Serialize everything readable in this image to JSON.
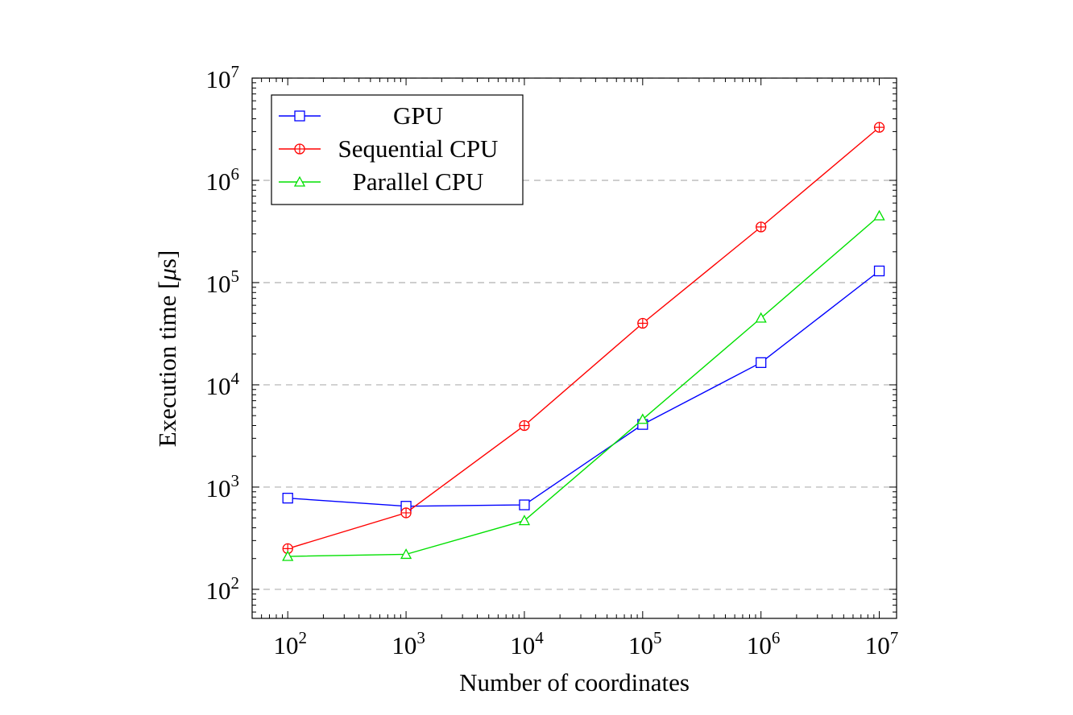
{
  "chart_data": {
    "type": "line",
    "title": "",
    "xlabel": "Number of coordinates",
    "ylabel_prefix": "Execution time [",
    "ylabel_mu": "μ",
    "ylabel_suffix": "s]",
    "xscale": "log",
    "yscale": "log",
    "xlim": [
      50,
      14000000
    ],
    "ylim": [
      52,
      10000000
    ],
    "x_ticks": [
      {
        "base": "10",
        "exp": "2",
        "value": 100
      },
      {
        "base": "10",
        "exp": "3",
        "value": 1000
      },
      {
        "base": "10",
        "exp": "4",
        "value": 10000
      },
      {
        "base": "10",
        "exp": "5",
        "value": 100000
      },
      {
        "base": "10",
        "exp": "6",
        "value": 1000000
      },
      {
        "base": "10",
        "exp": "7",
        "value": 10000000
      }
    ],
    "y_ticks": [
      {
        "base": "10",
        "exp": "2",
        "value": 100
      },
      {
        "base": "10",
        "exp": "3",
        "value": 1000
      },
      {
        "base": "10",
        "exp": "4",
        "value": 10000
      },
      {
        "base": "10",
        "exp": "5",
        "value": 100000
      },
      {
        "base": "10",
        "exp": "6",
        "value": 1000000
      },
      {
        "base": "10",
        "exp": "7",
        "value": 10000000
      }
    ],
    "grid": "y-major-dashed",
    "legend_position": "top-left",
    "x": [
      100,
      1000,
      10000,
      100000,
      1000000,
      10000000
    ],
    "series": [
      {
        "name": "GPU",
        "color": "#0000ff",
        "marker": "square",
        "values": [
          780,
          650,
          670,
          4100,
          16500,
          130000
        ]
      },
      {
        "name": "Sequential CPU",
        "color": "#ff0000",
        "marker": "circle-plus",
        "values": [
          250,
          560,
          4000,
          40000,
          350000,
          3300000
        ]
      },
      {
        "name": "Parallel CPU",
        "color": "#00e000",
        "marker": "triangle",
        "values": [
          210,
          220,
          470,
          4600,
          45000,
          450000
        ]
      }
    ]
  }
}
